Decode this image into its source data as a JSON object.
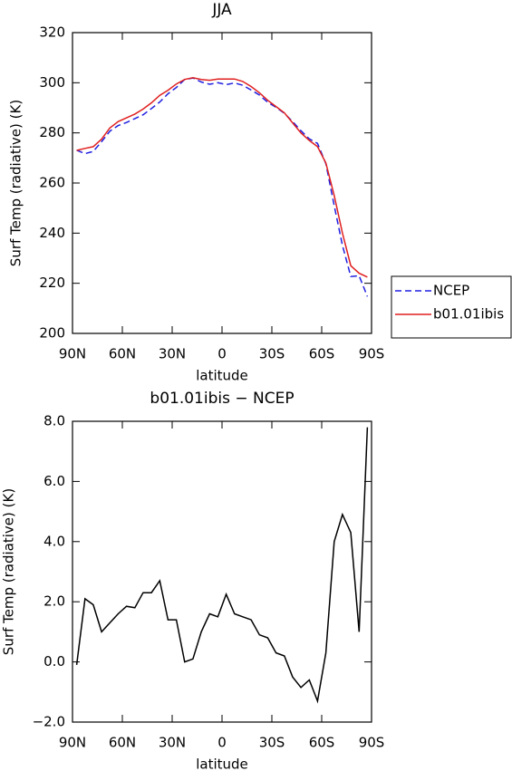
{
  "chart_data": [
    {
      "type": "line",
      "title": "JJA",
      "xlabel": "latitude",
      "ylabel": "Surf Temp (radiative) (K)",
      "x": [
        87.5,
        82.5,
        77.5,
        72.5,
        67.5,
        62.5,
        57.5,
        52.5,
        47.5,
        42.5,
        37.5,
        32.5,
        27.5,
        22.5,
        17.5,
        12.5,
        7.5,
        2.5,
        -2.5,
        -7.5,
        -12.5,
        -17.5,
        -22.5,
        -27.5,
        -32.5,
        -37.5,
        -42.5,
        -47.5,
        -52.5,
        -57.5,
        -62.5,
        -67.5,
        -72.5,
        -77.5,
        -82.5,
        -87.5
      ],
      "series": [
        {
          "name": "NCEP",
          "color": "#1f1fe0",
          "style": "dashed",
          "values": [
            273.1,
            271.7,
            272.6,
            276.5,
            280.7,
            282.9,
            284.15,
            285.7,
            287.2,
            289.7,
            292.3,
            295.6,
            298.1,
            301.3,
            301.9,
            300.3,
            299.4,
            300.0,
            299.25,
            299.9,
            299.0,
            297.1,
            295.1,
            292.2,
            290.2,
            287.8,
            284.5,
            280.85,
            277.6,
            275.8,
            267.7,
            251,
            235.1,
            222.7,
            223,
            214.7
          ]
        },
        {
          "name": "b01.01ibis",
          "color": "#e01f1f",
          "style": "solid",
          "values": [
            273,
            273.8,
            274.5,
            277.5,
            282,
            284.5,
            286,
            287.5,
            289.5,
            292,
            295,
            297,
            299.5,
            301.3,
            302,
            301.3,
            301,
            301.5,
            301.5,
            301.5,
            300.5,
            298.5,
            296,
            293,
            290.5,
            288,
            284,
            280,
            277,
            274.5,
            268,
            255,
            240,
            227,
            224,
            222.5
          ]
        }
      ],
      "xlim": [
        90,
        -90
      ],
      "xticks": [
        {
          "value": 90,
          "label": "90N"
        },
        {
          "value": 60,
          "label": "60N"
        },
        {
          "value": 30,
          "label": "30N"
        },
        0,
        {
          "value": -30,
          "label": "30S"
        },
        {
          "value": -60,
          "label": "60S"
        },
        {
          "value": -90,
          "label": "90S"
        }
      ],
      "ylim": [
        200,
        320
      ],
      "yticks": [
        200,
        220,
        240,
        260,
        280,
        300,
        320
      ],
      "legend": "right",
      "grid": false
    },
    {
      "type": "line",
      "title": "b01.01ibis − NCEP",
      "xlabel": "latitude",
      "ylabel": "Surf Temp (radiative) (K)",
      "x": [
        87.5,
        82.5,
        77.5,
        72.5,
        67.5,
        62.5,
        57.5,
        52.5,
        47.5,
        42.5,
        37.5,
        32.5,
        27.5,
        22.5,
        17.5,
        12.5,
        7.5,
        2.5,
        -2.5,
        -7.5,
        -12.5,
        -17.5,
        -22.5,
        -27.5,
        -32.5,
        -37.5,
        -42.5,
        -47.5,
        -52.5,
        -57.5,
        -62.5,
        -67.5,
        -72.5,
        -77.5,
        -82.5,
        -87.5
      ],
      "series": [
        {
          "color": "#000000",
          "style": "solid",
          "values": [
            -0.1,
            2.1,
            1.9,
            1.0,
            1.3,
            1.6,
            1.85,
            1.8,
            2.3,
            2.3,
            2.7,
            1.4,
            1.4,
            0.0,
            0.1,
            1.0,
            1.6,
            1.5,
            2.25,
            1.6,
            1.5,
            1.4,
            0.9,
            0.8,
            0.3,
            0.2,
            -0.5,
            -0.85,
            -0.6,
            -1.3,
            0.3,
            4.0,
            4.9,
            4.3,
            1.0,
            7.8
          ]
        }
      ],
      "xlim": [
        90,
        -90
      ],
      "xticks": [
        {
          "value": 90,
          "label": "90N"
        },
        {
          "value": 60,
          "label": "60N"
        },
        {
          "value": 30,
          "label": "30N"
        },
        0,
        {
          "value": -30,
          "label": "30S"
        },
        {
          "value": -60,
          "label": "60S"
        },
        {
          "value": -90,
          "label": "90S"
        }
      ],
      "ylim": [
        -2,
        8
      ],
      "yticks": [
        {
          "value": -2,
          "label": "−2.0"
        },
        {
          "value": 0,
          "label": "0.0"
        },
        {
          "value": 2,
          "label": "2.0"
        },
        {
          "value": 4,
          "label": "4.0"
        },
        {
          "value": 6,
          "label": "6.0"
        },
        {
          "value": 8,
          "label": "8.0"
        }
      ],
      "grid": false
    }
  ]
}
